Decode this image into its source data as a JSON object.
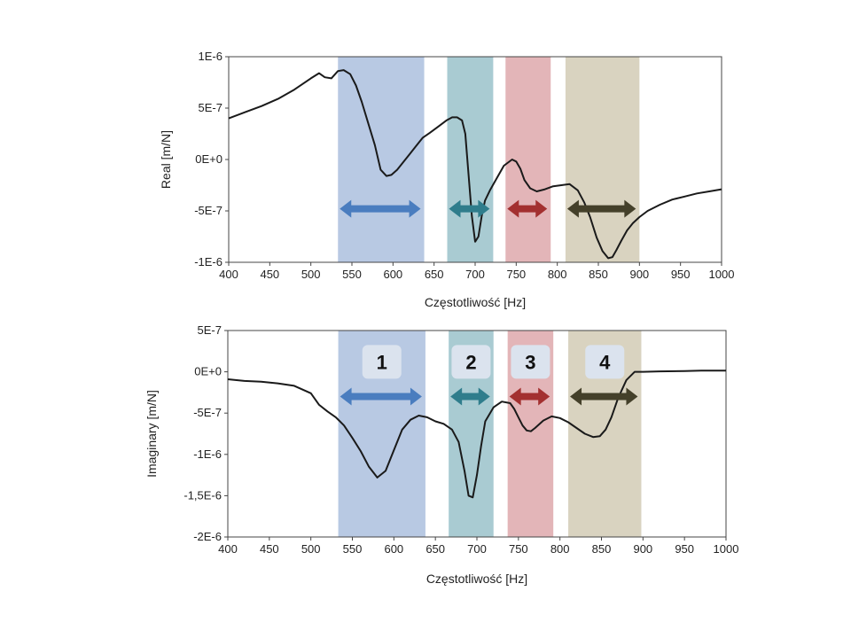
{
  "colors": {
    "band_blue": "#b8c9e3",
    "band_teal": "#a9cbd2",
    "band_red": "#e3b5b8",
    "band_olive": "#d9d3c0",
    "arrow_blue": "#4a7dbf",
    "arrow_teal": "#2f7d8c",
    "arrow_red": "#a33030",
    "arrow_olive": "#44402a",
    "label_box": "#dbe3ee",
    "curve": "#1a1a1a"
  },
  "chart_data": [
    {
      "type": "line",
      "xlabel": "Częstotliwość [Hz]",
      "ylabel": "Real [m/N]",
      "xlim": [
        400,
        1000
      ],
      "ylim": [
        -1e-06,
        1e-06
      ],
      "xticks": [
        400,
        450,
        500,
        550,
        600,
        650,
        700,
        750,
        800,
        850,
        900,
        950,
        1000
      ],
      "xtick_labels": [
        "400",
        "450",
        "500",
        "550",
        "600",
        "650",
        "700",
        "750",
        "800",
        "850",
        "900",
        "950",
        "1000"
      ],
      "yticks": [
        1e-06,
        5e-07,
        0,
        -5e-07,
        -1e-06
      ],
      "ytick_labels": [
        "1E-6",
        "5E-7",
        "0E+0",
        "-5E-7",
        "-1E-6"
      ],
      "bands": [
        {
          "x0": 533,
          "x1": 638,
          "color": "band_blue",
          "arrow": "arrow_blue"
        },
        {
          "x0": 666,
          "x1": 722,
          "color": "band_teal",
          "arrow": "arrow_teal"
        },
        {
          "x0": 737,
          "x1": 792,
          "color": "band_red",
          "arrow": "arrow_red"
        },
        {
          "x0": 810,
          "x1": 900,
          "color": "band_olive",
          "arrow": "arrow_olive"
        }
      ],
      "arrow_y": -4.8e-07,
      "series": [
        {
          "x": [
            400,
            420,
            440,
            460,
            480,
            500,
            510,
            517,
            525,
            533,
            540,
            548,
            555,
            562,
            570,
            578,
            585,
            592,
            598,
            605,
            612,
            620,
            628,
            636,
            645,
            655,
            665,
            672,
            678,
            684,
            688,
            692,
            696,
            700,
            704,
            708,
            712,
            718,
            725,
            735,
            745,
            750,
            755,
            760,
            767,
            775,
            785,
            795,
            805,
            815,
            825,
            833,
            840,
            848,
            855,
            862,
            867,
            872,
            878,
            885,
            892,
            900,
            910,
            925,
            940,
            955,
            970,
            985,
            1000
          ],
          "y": [
            4e-07,
            4.6e-07,
            5.2e-07,
            5.9e-07,
            6.8e-07,
            7.9e-07,
            8.4e-07,
            8e-07,
            7.9e-07,
            8.6e-07,
            8.7e-07,
            8.3e-07,
            7.2e-07,
            5.6e-07,
            3.5e-07,
            1.4e-07,
            -1e-07,
            -1.6e-07,
            -1.5e-07,
            -1e-07,
            -3e-08,
            5e-08,
            1.3e-07,
            2.1e-07,
            2.6e-07,
            3.2e-07,
            3.8e-07,
            4.1e-07,
            4.1e-07,
            3.8e-07,
            2.5e-07,
            -1.5e-07,
            -5.5e-07,
            -8e-07,
            -7.5e-07,
            -5.5e-07,
            -4e-07,
            -3e-07,
            -2e-07,
            -6e-08,
            0,
            -2e-08,
            -9e-08,
            -2e-07,
            -2.8e-07,
            -3.1e-07,
            -2.9e-07,
            -2.6e-07,
            -2.5e-07,
            -2.4e-07,
            -3e-07,
            -4.2e-07,
            -5.6e-07,
            -7.6e-07,
            -8.9e-07,
            -9.6e-07,
            -9.5e-07,
            -8.8e-07,
            -7.9e-07,
            -6.9e-07,
            -6.2e-07,
            -5.6e-07,
            -5e-07,
            -4.4e-07,
            -3.9e-07,
            -3.6e-07,
            -3.3e-07,
            -3.1e-07,
            -2.9e-07
          ]
        }
      ]
    },
    {
      "type": "line",
      "xlabel": "Częstotliwość [Hz]",
      "ylabel": "Imaginary [m/N]",
      "xlim": [
        400,
        1000
      ],
      "ylim": [
        -2e-06,
        5e-07
      ],
      "xticks": [
        400,
        450,
        500,
        550,
        600,
        650,
        700,
        750,
        800,
        850,
        900,
        950,
        1000
      ],
      "xtick_labels": [
        "400",
        "450",
        "500",
        "550",
        "600",
        "650",
        "700",
        "750",
        "800",
        "850",
        "900",
        "950",
        "1000"
      ],
      "yticks": [
        5e-07,
        0,
        -5e-07,
        -1e-06,
        -1.5e-06,
        -2e-06
      ],
      "ytick_labels": [
        "5E-7",
        "0E+0",
        "-5E-7",
        "-1E-6",
        "-1,5E-6",
        "-2E-6"
      ],
      "bands": [
        {
          "x0": 533,
          "x1": 638,
          "color": "band_blue",
          "arrow": "arrow_blue",
          "label": "1"
        },
        {
          "x0": 666,
          "x1": 720,
          "color": "band_teal",
          "arrow": "arrow_teal",
          "label": "2"
        },
        {
          "x0": 737,
          "x1": 792,
          "color": "band_red",
          "arrow": "arrow_red",
          "label": "3"
        },
        {
          "x0": 810,
          "x1": 898,
          "color": "band_olive",
          "arrow": "arrow_olive",
          "label": "4"
        }
      ],
      "arrow_y": -3e-07,
      "label_y": 1.2e-07,
      "series": [
        {
          "x": [
            400,
            420,
            440,
            460,
            480,
            500,
            510,
            520,
            530,
            540,
            550,
            560,
            570,
            580,
            590,
            600,
            610,
            620,
            630,
            640,
            650,
            660,
            670,
            678,
            685,
            690,
            695,
            700,
            705,
            710,
            720,
            730,
            740,
            745,
            750,
            755,
            760,
            765,
            770,
            780,
            790,
            800,
            810,
            820,
            830,
            840,
            848,
            855,
            862,
            870,
            880,
            890,
            900,
            920,
            950,
            970,
            1000
          ],
          "y": [
            -9e-08,
            -1.1e-07,
            -1.2e-07,
            -1.4e-07,
            -1.7e-07,
            -2.6e-07,
            -4e-07,
            -4.8e-07,
            -5.5e-07,
            -6.5e-07,
            -8e-07,
            -9.6e-07,
            -1.15e-06,
            -1.28e-06,
            -1.2e-06,
            -9.5e-07,
            -7e-07,
            -5.8e-07,
            -5.3e-07,
            -5.5e-07,
            -6e-07,
            -6.3e-07,
            -7e-07,
            -8.5e-07,
            -1.2e-06,
            -1.5e-06,
            -1.52e-06,
            -1.25e-06,
            -9e-07,
            -6e-07,
            -4.3e-07,
            -3.6e-07,
            -3.8e-07,
            -4.5e-07,
            -5.5e-07,
            -6.5e-07,
            -7.1e-07,
            -7.2e-07,
            -6.8e-07,
            -5.9e-07,
            -5.4e-07,
            -5.6e-07,
            -6.1e-07,
            -6.8e-07,
            -7.5e-07,
            -7.9e-07,
            -7.8e-07,
            -7e-07,
            -5.5e-07,
            -3.2e-07,
            -1e-07,
            0,
            0,
            5e-09,
            1e-08,
            1.5e-08,
            1.5e-08
          ]
        }
      ]
    }
  ]
}
